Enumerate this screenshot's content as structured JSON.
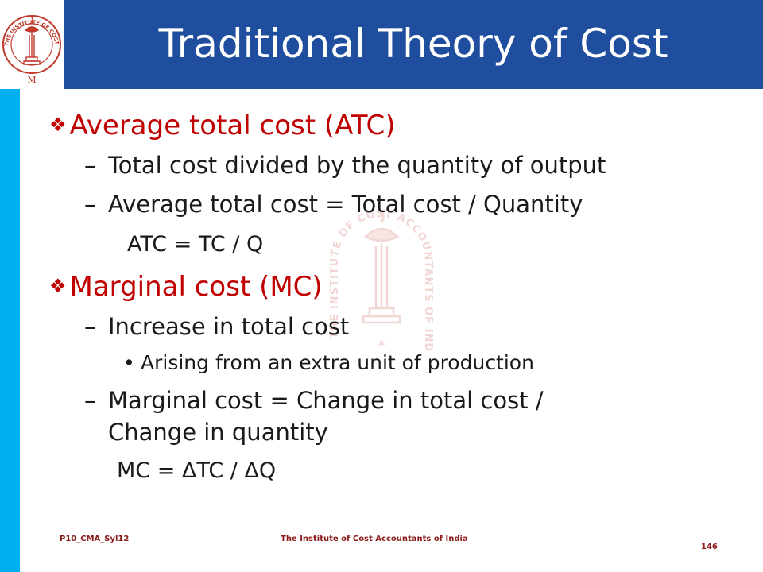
{
  "title": "Traditional Theory of Cost",
  "logo": {
    "ring_text": "THE INSTITUTE OF COST ACCOUNTANTS OF INDIA",
    "emblem": "lamp-emblem"
  },
  "colors": {
    "header_bg": "#1f4e9e",
    "accent_bar": "#00b0f0",
    "heading": "#c00000",
    "footer": "#8b1a1a"
  },
  "bullets": {
    "atc": {
      "heading": "Average total cost (ATC)",
      "sub1": "Total cost divided by the quantity of output",
      "sub2": "Average total cost = Total cost / Quantity",
      "formula": "ATC = TC / Q"
    },
    "mc": {
      "heading": "Marginal cost (MC)",
      "sub1": "Increase in total cost",
      "sub1_detail": "Arising from an extra unit of production",
      "sub2_line1": "Marginal cost = Change in total cost /",
      "sub2_line2": "Change in quantity",
      "formula": "MC = ΔTC / ΔQ"
    }
  },
  "footer": {
    "code": "P10_CMA_Syl12",
    "institute": "The Institute of Cost Accountants of India",
    "page": "146"
  }
}
